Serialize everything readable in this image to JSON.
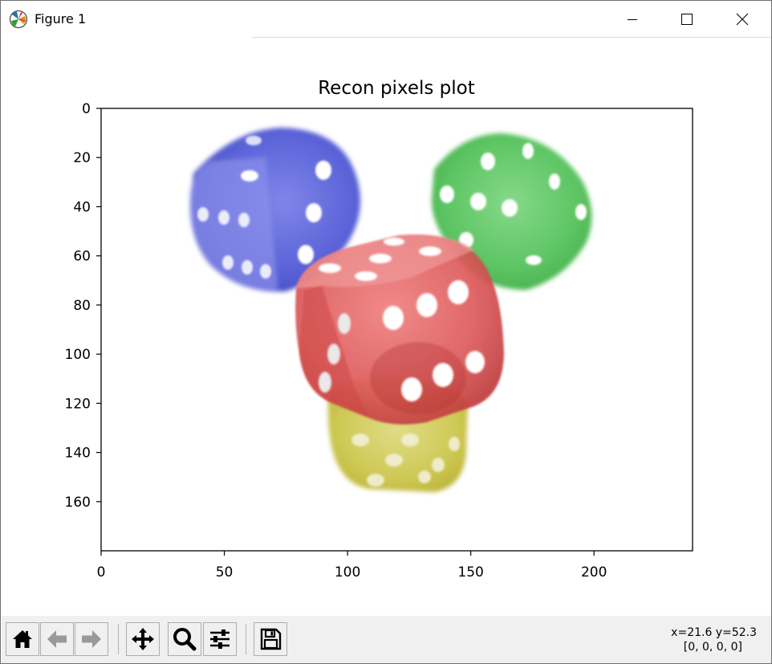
{
  "window": {
    "title": "Figure 1",
    "controls": [
      "minimize",
      "maximize",
      "close"
    ]
  },
  "plot": {
    "title": "Recon pixels plot"
  },
  "chart_data": {
    "type": "image",
    "title": "Recon pixels plot",
    "xlabel": "",
    "ylabel": "",
    "xlim": [
      0,
      240
    ],
    "ylim": [
      180,
      0
    ],
    "x_ticks": [
      "0",
      "50",
      "100",
      "150",
      "200"
    ],
    "y_ticks": [
      "0",
      "20",
      "40",
      "60",
      "80",
      "100",
      "120",
      "140",
      "160"
    ],
    "grid": false
  },
  "toolbar": {
    "buttons": [
      "home-icon",
      "back-icon",
      "forward-icon",
      "pan-icon",
      "zoom-icon",
      "subplots-icon",
      "save-icon"
    ],
    "coords_line1": "x=21.6 y=52.3",
    "coords_line2": "[0, 0, 0, 0]"
  }
}
